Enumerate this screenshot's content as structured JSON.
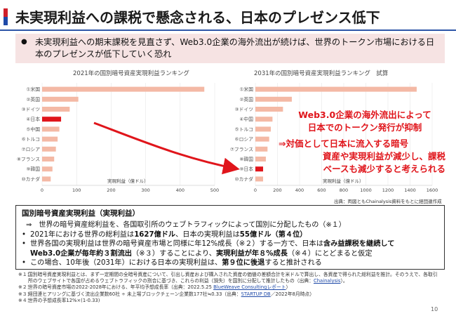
{
  "title": "未実現利益への課税で懸念される、日本のプレゼンス低下",
  "summary": {
    "bullet": "●",
    "text": "未実現利益への期末課税を見直さず、Web3.0企業の海外流出が続けば、世界のトークン市場における日本のプレゼンスが低下していく恐れ"
  },
  "chart_data": [
    {
      "type": "bar",
      "orientation": "horizontal",
      "title": "2021年の国別暗号資産実現利益ランキング",
      "categories": [
        "①米国",
        "②英国",
        "③ドイツ",
        "④日本",
        "⑤中国",
        "⑥トルコ",
        "⑦ロシア",
        "⑧フランス",
        "⑨韓国",
        "⑩カナダ"
      ],
      "values": [
        470,
        105,
        80,
        55,
        50,
        45,
        40,
        35,
        30,
        25
      ],
      "highlight_index": 3,
      "xlabel": "実現利益（億ドル）",
      "xlim": [
        0,
        500
      ],
      "ticks": [
        0,
        100,
        200,
        300,
        400,
        500
      ]
    },
    {
      "type": "bar",
      "orientation": "horizontal",
      "title": "2031年の国別暗号資産実現利益ランキング　試算",
      "categories": [
        "①米国",
        "②英国",
        "③ドイツ",
        "④中国",
        "⑤トルコ",
        "⑥ロシア",
        "⑦フランス",
        "⑧韓国",
        "⑨日本",
        "⑩カナダ"
      ],
      "values": [
        1460,
        330,
        250,
        155,
        140,
        125,
        110,
        95,
        70,
        70
      ],
      "highlight_index": 8,
      "xlabel": "実現利益（億ドル）",
      "xlim": [
        0,
        1600
      ],
      "ticks": [
        0,
        200,
        400,
        600,
        800,
        1000,
        1200,
        1400,
        1600
      ]
    }
  ],
  "callout": {
    "line1": "Web3.0企業の海外流出によって",
    "line2": "日本でのトークン発行が抑制",
    "line3": "⇒対価として日本に流入する暗号",
    "line4": "資産や実現利益が減少し、課税",
    "line5": "ベースも減少すると考えられる"
  },
  "source_note": "出典：両図ともChainalysis資料をもとに経団連作成",
  "detail": {
    "heading": "国別暗号資産実現利益（実現利益）",
    "definition": "⇒　世界の暗号資産総利益を、各国取引所のウェブトラフィックによって国別に分配したもの（※１）",
    "item1_a": "2021年における世界の総利益は",
    "item1_b": "1627億ドル",
    "item1_c": "、日本の実現利益は",
    "item1_d": "55億ドル（第４位）",
    "item2_a": "世界各国の実現利益は世界の暗号資産市場と同様に年12%成長（※２）する一方で、日本は",
    "item2_b": "含み益課税を継続して",
    "item2_c": "Web3.0企業が毎年約３割流出",
    "item2_d": "（※３）することにより、",
    "item2_e": "実現利益が年８%成長",
    "item2_f": "（※４）にとどまると仮定",
    "item3_a": "この場合、10年後（2031年）における日本の実現利益は、",
    "item3_b": "第９位に後退",
    "item3_c": "すると推計される"
  },
  "footnotes": {
    "fn1_mark": "※１：",
    "fn1_text": "国別暗号資産実現利益とは、まず一定期間の全暗号資産について、引出し資産および購入された資産の価値の差額合計を米ドルで算出し、各資産で得られた総利益を推計。そのうえで、各取引所のウェブサイトで各国が占めるウェブトラフィックの割合に基づき、これらの利益（損失）を国別に分配して推計したもの（出典：",
    "fn1_link": "Chainalysis",
    "fn1_end": "）。",
    "fn2_mark": "※２：",
    "fn2_text": "世界の暗号資産市場の2022-2028年における、年平均予想成長率（出典：2022.5.25 ",
    "fn2_link": "BlueWeave Consultingレポート",
    "fn2_end": "）",
    "fn3_mark": "※３：",
    "fn3_text": "経団連ヒアリングに基づく流出企業数60社 ÷ 未上場ブロックチェーン企業数177社≒0.33（出典：",
    "fn3_link": "STARTUP DB",
    "fn3_end": "／2022年8月時点）",
    "fn4_mark": "※４：",
    "fn4_text": "世界の予想成長率12%×(1-0.33)"
  },
  "page_number": "10",
  "colors": {
    "bar": "#f4b9a5",
    "highlight": "#e0151b",
    "callout": "#e0151b",
    "accent_blue": "#1f4aa8",
    "accent_red": "#d01f2a"
  }
}
